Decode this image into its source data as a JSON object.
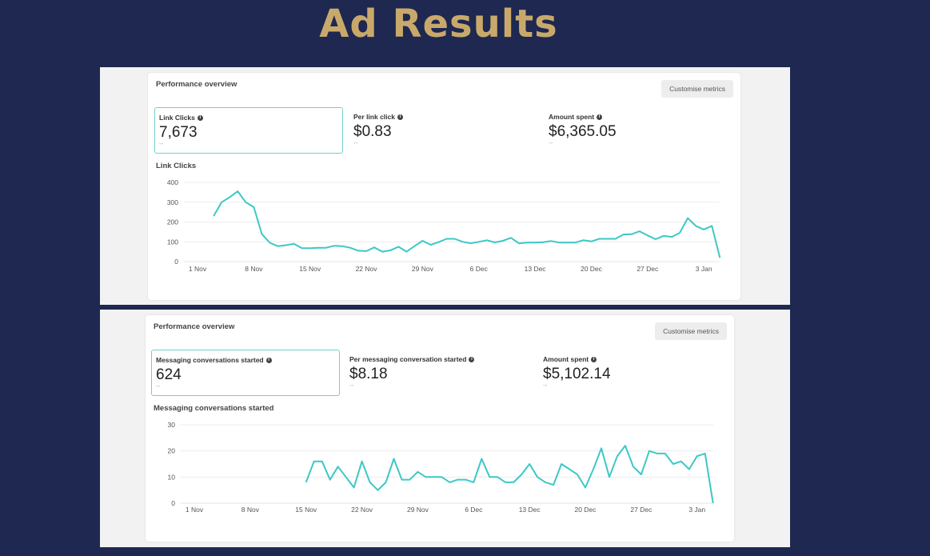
{
  "page_title": "Ad Results",
  "colors": {
    "background": "#1e2850",
    "title": "#c9a96b",
    "line": "#3cc8c6",
    "selected_border": "#6fd0cf"
  },
  "panels": [
    {
      "header": "Performance overview",
      "customise_label": "Customise metrics",
      "metrics": [
        {
          "label": "Link Clicks",
          "value": "7,673",
          "delta": "--",
          "selected": true,
          "icon": "info-icon"
        },
        {
          "label": "Per link click",
          "value": "$0.83",
          "delta": "--",
          "selected": false,
          "icon": "info-icon"
        },
        {
          "label": "Amount spent",
          "value": "$6,365.05",
          "delta": "--",
          "selected": false,
          "icon": "info-icon"
        }
      ]
    },
    {
      "header": "Performance overview",
      "customise_label": "Customise metrics",
      "metrics": [
        {
          "label": "Messaging conversations started",
          "value": "624",
          "delta": "--",
          "selected": true,
          "icon": "info-icon"
        },
        {
          "label": "Per messaging conversation started",
          "value": "$8.18",
          "delta": "--",
          "selected": false,
          "icon": "info-icon"
        },
        {
          "label": "Amount spent",
          "value": "$5,102.14",
          "delta": "--",
          "selected": false,
          "icon": "info-icon"
        }
      ]
    }
  ],
  "chart_data": [
    {
      "type": "line",
      "title": "Link Clicks",
      "grid": true,
      "ylim": [
        0,
        400
      ],
      "yticks": [
        0,
        100,
        200,
        300,
        400
      ],
      "xticks": [
        "1 Nov",
        "8 Nov",
        "15 Nov",
        "22 Nov",
        "29 Nov",
        "6 Dec",
        "13 Dec",
        "20 Dec",
        "27 Dec",
        "3 Jan"
      ],
      "x": [
        "3 Nov",
        "4 Nov",
        "5 Nov",
        "6 Nov",
        "7 Nov",
        "8 Nov",
        "9 Nov",
        "10 Nov",
        "11 Nov",
        "12 Nov",
        "13 Nov",
        "14 Nov",
        "15 Nov",
        "16 Nov",
        "17 Nov",
        "18 Nov",
        "19 Nov",
        "20 Nov",
        "21 Nov",
        "22 Nov",
        "23 Nov",
        "24 Nov",
        "25 Nov",
        "26 Nov",
        "27 Nov",
        "28 Nov",
        "29 Nov",
        "30 Nov",
        "1 Dec",
        "2 Dec",
        "3 Dec",
        "4 Dec",
        "5 Dec",
        "6 Dec",
        "7 Dec",
        "8 Dec",
        "9 Dec",
        "10 Dec",
        "11 Dec",
        "12 Dec",
        "13 Dec",
        "14 Dec",
        "15 Dec",
        "16 Dec",
        "17 Dec",
        "18 Dec",
        "19 Dec",
        "20 Dec",
        "21 Dec",
        "22 Dec",
        "23 Dec",
        "24 Dec",
        "25 Dec",
        "26 Dec",
        "27 Dec",
        "28 Dec",
        "29 Dec",
        "30 Dec",
        "31 Dec",
        "1 Jan",
        "2 Jan",
        "3 Jan",
        "4 Jan",
        "5 Jan"
      ],
      "values": [
        230,
        300,
        325,
        355,
        300,
        275,
        140,
        95,
        78,
        83,
        90,
        68,
        68,
        70,
        70,
        80,
        78,
        70,
        55,
        53,
        72,
        50,
        57,
        75,
        50,
        78,
        105,
        85,
        98,
        115,
        115,
        100,
        92,
        100,
        108,
        97,
        105,
        120,
        92,
        96,
        96,
        98,
        104,
        96,
        96,
        96,
        108,
        102,
        115,
        115,
        115,
        137,
        138,
        153,
        132,
        113,
        130,
        125,
        145,
        220,
        180,
        162,
        180,
        20
      ]
    },
    {
      "type": "line",
      "title": "Messaging conversations started",
      "grid": true,
      "ylim": [
        0,
        30
      ],
      "yticks": [
        0,
        10,
        20,
        30
      ],
      "xticks": [
        "1 Nov",
        "8 Nov",
        "15 Nov",
        "22 Nov",
        "29 Nov",
        "6 Dec",
        "13 Dec",
        "20 Dec",
        "27 Dec",
        "3 Jan"
      ],
      "x": [
        "15 Nov",
        "16 Nov",
        "17 Nov",
        "18 Nov",
        "19 Nov",
        "20 Nov",
        "21 Nov",
        "22 Nov",
        "23 Nov",
        "24 Nov",
        "25 Nov",
        "26 Nov",
        "27 Nov",
        "28 Nov",
        "29 Nov",
        "30 Nov",
        "1 Dec",
        "2 Dec",
        "3 Dec",
        "4 Dec",
        "5 Dec",
        "6 Dec",
        "7 Dec",
        "8 Dec",
        "9 Dec",
        "10 Dec",
        "11 Dec",
        "12 Dec",
        "13 Dec",
        "14 Dec",
        "15 Dec",
        "16 Dec",
        "17 Dec",
        "18 Dec",
        "19 Dec",
        "20 Dec",
        "21 Dec",
        "22 Dec",
        "23 Dec",
        "24 Dec",
        "25 Dec",
        "26 Dec",
        "27 Dec",
        "28 Dec",
        "29 Dec",
        "30 Dec",
        "31 Dec",
        "1 Jan",
        "2 Jan",
        "3 Jan",
        "4 Jan",
        "5 Jan"
      ],
      "values": [
        8,
        16,
        16,
        9,
        14,
        10,
        6,
        16,
        8,
        5,
        8,
        17,
        9,
        9,
        12,
        10,
        10,
        10,
        8,
        9,
        9,
        8,
        17,
        10,
        10,
        8,
        8,
        11,
        15,
        10,
        8,
        7,
        15,
        13,
        11,
        6,
        13,
        21,
        10,
        18,
        22,
        14,
        11,
        20,
        19,
        19,
        15,
        16,
        13,
        18,
        19,
        0
      ]
    }
  ]
}
